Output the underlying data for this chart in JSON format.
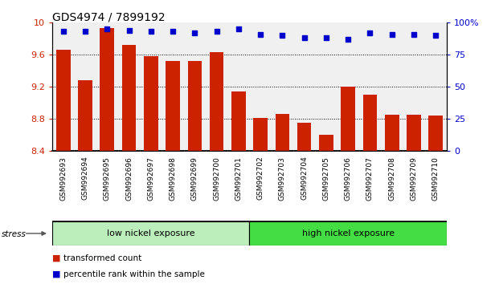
{
  "title": "GDS4974 / 7899192",
  "samples": [
    "GSM992693",
    "GSM992694",
    "GSM992695",
    "GSM992696",
    "GSM992697",
    "GSM992698",
    "GSM992699",
    "GSM992700",
    "GSM992701",
    "GSM992702",
    "GSM992703",
    "GSM992704",
    "GSM992705",
    "GSM992706",
    "GSM992707",
    "GSM992708",
    "GSM992709",
    "GSM992710"
  ],
  "bar_values": [
    9.66,
    9.28,
    9.93,
    9.72,
    9.58,
    9.52,
    9.52,
    9.63,
    9.14,
    8.81,
    8.86,
    8.75,
    8.6,
    9.2,
    9.1,
    8.85,
    8.85,
    8.84
  ],
  "dot_values": [
    93,
    93,
    95,
    94,
    93,
    93,
    92,
    93,
    95,
    91,
    90,
    88,
    88,
    87,
    92,
    91,
    91,
    90
  ],
  "ylim_left": [
    8.4,
    10.0
  ],
  "ylim_right": [
    0,
    100
  ],
  "yticks_left": [
    8.4,
    8.8,
    9.2,
    9.6,
    10.0
  ],
  "ytick_labels_left": [
    "8.4",
    "8.8",
    "9.2",
    "9.6",
    "10"
  ],
  "yticks_right": [
    0,
    25,
    50,
    75,
    100
  ],
  "ytick_labels_right": [
    "0",
    "25",
    "50",
    "75",
    "100%"
  ],
  "bar_color": "#cc2200",
  "dot_color": "#0000cc",
  "group1_label": "low nickel exposure",
  "group2_label": "high nickel exposure",
  "group1_count": 9,
  "group1_bg": "#bbeebb",
  "group2_bg": "#44dd44",
  "xticklabel_bg": "#d4d4d4",
  "stress_label": "stress",
  "legend_bar_label": "transformed count",
  "legend_dot_label": "percentile rank within the sample",
  "plot_bg": "#f0f0f0"
}
